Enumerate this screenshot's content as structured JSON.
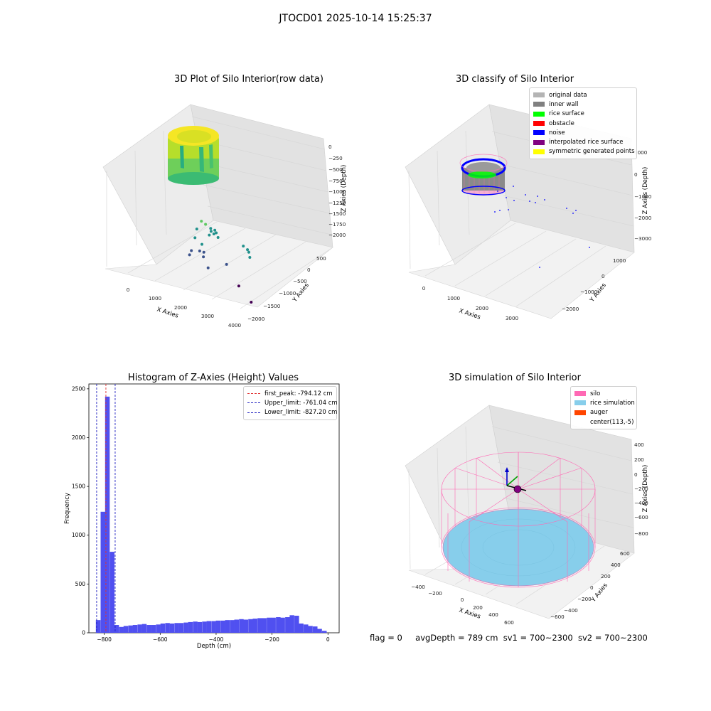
{
  "suptitle": "JTOCD01 2025-10-14 15:25:37",
  "footer": {
    "flag": "flag = 0",
    "avg_depth": "avgDepth = 789 cm",
    "sv1": "sv1 = 700~2300",
    "sv2": "sv2 = 700~2300"
  },
  "colors": {
    "histogram_bar": "#5050f0",
    "first_peak_line": "#e03030",
    "limit_lines": "#2020c0",
    "original_data": "#b4b4b4",
    "inner_wall": "#808080",
    "rice_surface": "#00ff00",
    "obstacle": "#ff0000",
    "noise": "#0000ff",
    "interpolated_rice_surface": "#800080",
    "symmetric_generated_points": "#ffff00",
    "silo": "#ff69b4",
    "rice_simulation": "#87ceeb",
    "auger": "#ff4500"
  },
  "chart_data": [
    {
      "type": "scatter",
      "projection": "3d",
      "title": "3D Plot of Silo Interior(row data)",
      "xlabel": "X Axies",
      "ylabel": "Y Axies",
      "zlabel": "Z Axies (Depth)",
      "x_ticks": [
        "0",
        "1000",
        "2000",
        "3000",
        "4000"
      ],
      "y_ticks": [
        "500",
        "0",
        "−500",
        "−1000",
        "−1500",
        "−2000"
      ],
      "z_ticks": [
        "0",
        "−250",
        "−500",
        "−750",
        "−1000",
        "−1250",
        "−1500",
        "−1750",
        "−2000"
      ],
      "xlim": [
        -500,
        4000
      ],
      "ylim": [
        -2200,
        800
      ],
      "zlim": [
        -2100,
        100
      ],
      "colormap": "viridis",
      "points": [
        {
          "x": 2000,
          "y": -250,
          "z": -700
        },
        {
          "x": 2150,
          "y": -250,
          "z": -740
        },
        {
          "x": 2300,
          "y": -300,
          "z": -790
        },
        {
          "x": 2350,
          "y": -250,
          "z": -860
        },
        {
          "x": 2450,
          "y": -300,
          "z": -800
        },
        {
          "x": 2500,
          "y": -300,
          "z": -850
        },
        {
          "x": 2450,
          "y": -250,
          "z": -900
        },
        {
          "x": 2600,
          "y": -250,
          "z": -950
        },
        {
          "x": 2250,
          "y": -300,
          "z": -950
        },
        {
          "x": 3200,
          "y": -700,
          "z": -900
        },
        {
          "x": 3350,
          "y": -700,
          "z": -950
        },
        {
          "x": 3400,
          "y": -700,
          "z": -1000
        },
        {
          "x": 3400,
          "y": -750,
          "z": -1100
        },
        {
          "x": 1800,
          "y": -300,
          "z": -900
        },
        {
          "x": 1700,
          "y": -350,
          "z": -1100
        },
        {
          "x": 2000,
          "y": -600,
          "z": -1650
        },
        {
          "x": 1900,
          "y": -500,
          "z": -1450
        },
        {
          "x": 1800,
          "y": -450,
          "z": -1350
        },
        {
          "x": 1500,
          "y": -450,
          "z": -1400
        },
        {
          "x": 1400,
          "y": -500,
          "z": -1500
        },
        {
          "x": 2250,
          "y": -1200,
          "z": -1350
        },
        {
          "x": 1950,
          "y": -350,
          "z": -1200
        },
        {
          "x": 1950,
          "y": -450,
          "z": -1350
        },
        {
          "x": 3800,
          "y": 400,
          "z": -2000
        },
        {
          "x": 3000,
          "y": -1400,
          "z": -2000
        }
      ]
    },
    {
      "type": "scatter",
      "projection": "3d",
      "title": "3D classify of Silo Interior",
      "xlabel": "X Axies",
      "ylabel": "Y Axies",
      "zlabel": "Z Axies (Depth)",
      "x_ticks": [
        "0",
        "1000",
        "2000",
        "3000"
      ],
      "y_ticks": [
        "1000",
        "0",
        "−1000",
        "−2000"
      ],
      "z_ticks": [
        "1000",
        "0",
        "−1000",
        "−2000",
        "−3000"
      ],
      "legend": [
        "original data",
        "inner wall",
        "rice surface",
        "obstacle",
        "noise",
        "interpolated rice surface",
        "symmetric generated points"
      ],
      "legend_position": "upper right"
    },
    {
      "type": "bar",
      "title": "Histogram of Z-Axies (Height) Values",
      "xlabel": "Depth (cm)",
      "ylabel": "Frequency",
      "xlim": [
        -855,
        40
      ],
      "ylim": [
        0,
        2550
      ],
      "x_ticks": [
        -800,
        -600,
        -400,
        -200,
        0
      ],
      "y_ticks": [
        0,
        500,
        1000,
        1500,
        2000,
        2500
      ],
      "bin_width": 16.5,
      "bins": [
        {
          "x0": -830,
          "count": 130
        },
        {
          "x0": -813,
          "count": 1240
        },
        {
          "x0": -797,
          "count": 2420
        },
        {
          "x0": -780,
          "count": 830
        },
        {
          "x0": -764,
          "count": 80
        },
        {
          "x0": -747,
          "count": 60
        },
        {
          "x0": -731,
          "count": 70
        },
        {
          "x0": -714,
          "count": 75
        },
        {
          "x0": -698,
          "count": 80
        },
        {
          "x0": -681,
          "count": 85
        },
        {
          "x0": -665,
          "count": 90
        },
        {
          "x0": -648,
          "count": 80
        },
        {
          "x0": -632,
          "count": 80
        },
        {
          "x0": -615,
          "count": 85
        },
        {
          "x0": -599,
          "count": 95
        },
        {
          "x0": -582,
          "count": 100
        },
        {
          "x0": -566,
          "count": 95
        },
        {
          "x0": -549,
          "count": 100
        },
        {
          "x0": -533,
          "count": 100
        },
        {
          "x0": -516,
          "count": 105
        },
        {
          "x0": -500,
          "count": 110
        },
        {
          "x0": -483,
          "count": 115
        },
        {
          "x0": -467,
          "count": 110
        },
        {
          "x0": -450,
          "count": 115
        },
        {
          "x0": -434,
          "count": 120
        },
        {
          "x0": -417,
          "count": 120
        },
        {
          "x0": -401,
          "count": 125
        },
        {
          "x0": -384,
          "count": 125
        },
        {
          "x0": -368,
          "count": 130
        },
        {
          "x0": -351,
          "count": 130
        },
        {
          "x0": -335,
          "count": 135
        },
        {
          "x0": -318,
          "count": 140
        },
        {
          "x0": -302,
          "count": 135
        },
        {
          "x0": -285,
          "count": 140
        },
        {
          "x0": -269,
          "count": 145
        },
        {
          "x0": -252,
          "count": 150
        },
        {
          "x0": -236,
          "count": 150
        },
        {
          "x0": -219,
          "count": 155
        },
        {
          "x0": -203,
          "count": 155
        },
        {
          "x0": -186,
          "count": 160
        },
        {
          "x0": -170,
          "count": 155
        },
        {
          "x0": -153,
          "count": 160
        },
        {
          "x0": -137,
          "count": 180
        },
        {
          "x0": -120,
          "count": 175
        },
        {
          "x0": -104,
          "count": 95
        },
        {
          "x0": -87,
          "count": 85
        },
        {
          "x0": -71,
          "count": 70
        },
        {
          "x0": -54,
          "count": 65
        },
        {
          "x0": -38,
          "count": 40
        },
        {
          "x0": -21,
          "count": 20
        }
      ],
      "reference_lines": [
        {
          "name": "first_peak: -794.12 cm",
          "x": -794.12,
          "color": "#e03030"
        },
        {
          "name": "Upper_limit: -761.04 cm",
          "x": -761.04,
          "color": "#2020c0"
        },
        {
          "name": "Lower_limit: -827.20 cm",
          "x": -827.2,
          "color": "#2020c0"
        }
      ],
      "legend_position": "upper right"
    },
    {
      "type": "scatter",
      "projection": "3d",
      "title": "3D simulation of Silo Interior",
      "xlabel": "X Axies",
      "ylabel": "Y Axies",
      "zlabel": "Z Axies (Depth)",
      "x_ticks": [
        "−400",
        "−200",
        "0",
        "200",
        "400",
        "600"
      ],
      "y_ticks": [
        "600",
        "400",
        "200",
        "0",
        "−200",
        "−400",
        "−600"
      ],
      "z_ticks": [
        "400",
        "200",
        "0",
        "−200",
        "−400",
        "−600",
        "−800"
      ],
      "legend": [
        "silo",
        "rice simulation",
        "auger",
        "center(113,-5)"
      ],
      "legend_position": "upper right"
    }
  ]
}
